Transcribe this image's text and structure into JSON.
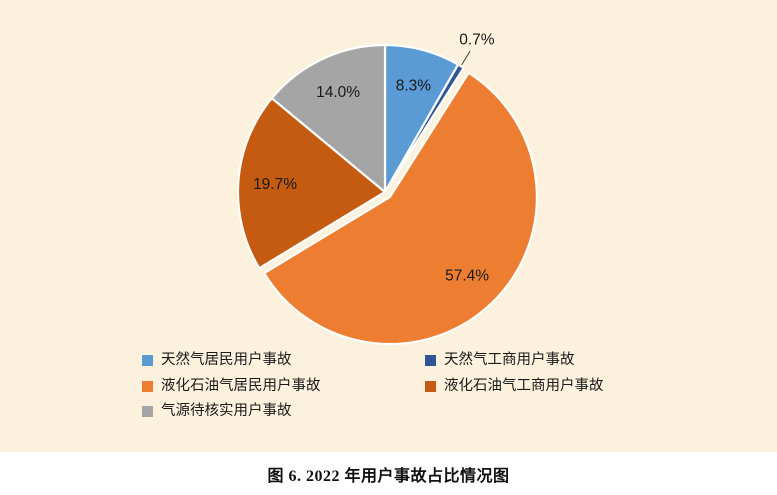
{
  "page": {
    "panel_background": "#FBF1DC",
    "caption_background": "#FFFFFF"
  },
  "chart_data": {
    "type": "pie",
    "title": "图 6. 2022 年用户事故占比情况图",
    "legend_position": "bottom",
    "start_angle_deg": 0,
    "direction": "clockwise",
    "slices": [
      {
        "label": "天然气居民用户事故",
        "value": 8.3,
        "pct_label": "8.3%",
        "color": "#5B9BD5",
        "label_placement": "inside"
      },
      {
        "label": "天然气工商用户事故",
        "value": 0.7,
        "pct_label": "0.7%",
        "color": "#2F5597",
        "label_placement": "outside"
      },
      {
        "label": "液化石油气居民用户事故",
        "value": 57.4,
        "pct_label": "57.4%",
        "color": "#ED7D31",
        "label_placement": "inside",
        "explode": 7
      },
      {
        "label": "液化石油气工商用户事故",
        "value": 19.7,
        "pct_label": "19.7%",
        "color": "#C55A11",
        "label_placement": "inside"
      },
      {
        "label": "气源待核实用户事故",
        "value": 14.0,
        "pct_label": "14.0%",
        "color": "#A5A5A5",
        "label_placement": "inside"
      }
    ]
  }
}
